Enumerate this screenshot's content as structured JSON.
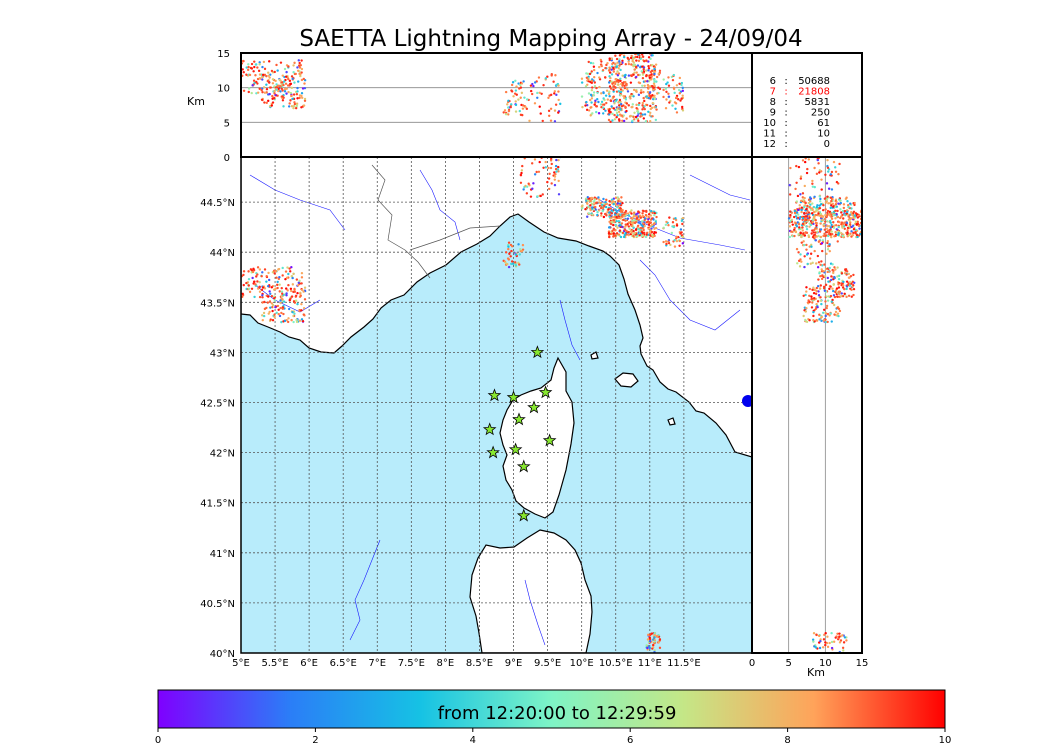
{
  "chart_data": {
    "type": "scatter",
    "title": "SAETTA Lightning Mapping Array - 24/09/04",
    "colors": {
      "sea": "#b8ecfb",
      "land": "#ffffff",
      "coast": "#000000",
      "rivers": "#1a1aff",
      "borders": "#555555",
      "stations_fill": "#88e830",
      "accent_highlight": "#ff0000"
    },
    "map": {
      "lon_range": [
        5,
        12.5
      ],
      "lat_range": [
        40,
        44.95
      ],
      "lon_ticks": [
        "5°E",
        "5.5°E",
        "6°E",
        "6.5°E",
        "7°E",
        "7.5°E",
        "8°E",
        "8.5°E",
        "9°E",
        "9.5°E",
        "10°E",
        "10.5°E",
        "11°E",
        "11.5°E"
      ],
      "lat_ticks": [
        "40°N",
        "40.5°N",
        "41°N",
        "41.5°N",
        "42°N",
        "42.5°N",
        "43°N",
        "43.5°N",
        "44°N",
        "44.5°N"
      ],
      "grid": true
    },
    "altitude_panel": {
      "ylabel": "Km",
      "ylim": [
        0,
        15
      ],
      "yticks": [
        "0",
        "5",
        "10",
        "15"
      ]
    },
    "side_panel": {
      "xlabel": "Km",
      "xlim": [
        0,
        15
      ],
      "xticks": [
        "0",
        "5",
        "10",
        "15"
      ]
    },
    "counts": {
      "rows": [
        {
          "min": "6",
          "count": "50688",
          "highlight": false
        },
        {
          "min": "7",
          "count": "21808",
          "highlight": true
        },
        {
          "min": "8",
          "count": "5831",
          "highlight": false
        },
        {
          "min": "9",
          "count": "250",
          "highlight": false
        },
        {
          "min": "10",
          "count": "61",
          "highlight": false
        },
        {
          "min": "11",
          "count": "10",
          "highlight": false
        },
        {
          "min": "12",
          "count": "0",
          "highlight": false
        }
      ]
    },
    "stations": [
      {
        "lon": 9.35,
        "lat": 43.0
      },
      {
        "lon": 8.72,
        "lat": 42.57
      },
      {
        "lon": 9.0,
        "lat": 42.55
      },
      {
        "lon": 9.47,
        "lat": 42.6
      },
      {
        "lon": 9.3,
        "lat": 42.45
      },
      {
        "lon": 9.08,
        "lat": 42.33
      },
      {
        "lon": 8.65,
        "lat": 42.23
      },
      {
        "lon": 9.53,
        "lat": 42.12
      },
      {
        "lon": 8.7,
        "lat": 42.0
      },
      {
        "lon": 9.03,
        "lat": 42.03
      },
      {
        "lon": 9.15,
        "lat": 41.86
      },
      {
        "lon": 9.15,
        "lat": 41.37
      }
    ],
    "lightning_clusters": [
      {
        "lon": [
          5.0,
          5.9
        ],
        "lat": [
          43.55,
          43.85
        ],
        "alt": [
          9,
          14
        ],
        "n": 120
      },
      {
        "lon": [
          5.3,
          5.95
        ],
        "lat": [
          43.3,
          43.65
        ],
        "alt": [
          7,
          12
        ],
        "n": 120
      },
      {
        "lon": [
          10.0,
          10.6
        ],
        "lat": [
          44.35,
          44.55
        ],
        "alt": [
          6,
          14
        ],
        "n": 160
      },
      {
        "lon": [
          10.4,
          11.1
        ],
        "lat": [
          44.15,
          44.42
        ],
        "alt": [
          5,
          15
        ],
        "n": 320
      },
      {
        "lon": [
          11.2,
          11.5
        ],
        "lat": [
          44.05,
          44.35
        ],
        "alt": [
          6,
          12
        ],
        "n": 50
      },
      {
        "lon": [
          9.1,
          9.7
        ],
        "lat": [
          44.55,
          44.95
        ],
        "alt": [
          5,
          12
        ],
        "n": 60
      },
      {
        "lon": [
          8.85,
          9.15
        ],
        "lat": [
          43.85,
          44.1
        ],
        "alt": [
          6,
          11
        ],
        "n": 40
      },
      {
        "lon": [
          10.95,
          11.15
        ],
        "lat": [
          40.0,
          40.2
        ],
        "alt": [
          8,
          13
        ],
        "n": 50
      }
    ],
    "colorbar": {
      "label": "from 12:20:00 to 12:29:59",
      "range": [
        0,
        10
      ],
      "ticks": [
        "0",
        "2",
        "4",
        "6",
        "8",
        "10"
      ],
      "stops": [
        "#7f00ff",
        "#2b7df7",
        "#16c2e4",
        "#7ef4c6",
        "#c4e787",
        "#ffa35a",
        "#ff0000"
      ]
    }
  }
}
